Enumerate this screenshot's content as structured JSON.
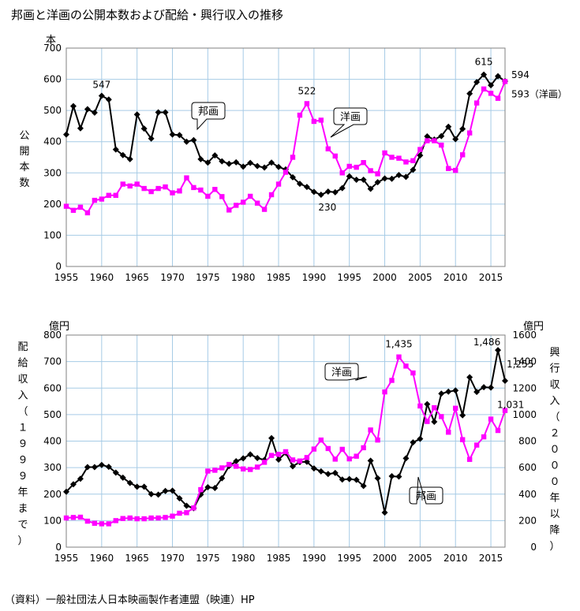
{
  "title": "邦画と洋画の公開本数および配給・興行収入の推移",
  "source": "（資料）一般社団法人日本映画製作者連盟（映連）HP",
  "colors": {
    "domestic": "#000000",
    "foreign": "#ff00ff",
    "grid": "#a6cbe6",
    "axis": "#808080"
  },
  "chart_data": [
    {
      "type": "line",
      "unit_label": "本",
      "ylabel": "公開本数",
      "ylim": [
        0,
        700
      ],
      "yticks": [
        0,
        100,
        200,
        300,
        400,
        500,
        600,
        700
      ],
      "xlim": [
        1955,
        2017
      ],
      "xticks": [
        1955,
        1960,
        1965,
        1970,
        1975,
        1980,
        1985,
        1990,
        1995,
        2000,
        2005,
        2010,
        2015
      ],
      "grid": true,
      "series": [
        {
          "name": "邦画",
          "marker": "diamond",
          "x": [
            1955,
            1956,
            1957,
            1958,
            1959,
            1960,
            1961,
            1962,
            1963,
            1964,
            1965,
            1966,
            1967,
            1968,
            1969,
            1970,
            1971,
            1972,
            1973,
            1974,
            1975,
            1976,
            1977,
            1978,
            1979,
            1980,
            1981,
            1982,
            1983,
            1984,
            1985,
            1986,
            1987,
            1988,
            1989,
            1990,
            1991,
            1992,
            1993,
            1994,
            1995,
            1996,
            1997,
            1998,
            1999,
            2000,
            2001,
            2002,
            2003,
            2004,
            2005,
            2006,
            2007,
            2008,
            2009,
            2010,
            2011,
            2012,
            2013,
            2014,
            2015,
            2016,
            2017
          ],
          "values": [
            423,
            514,
            443,
            504,
            493,
            547,
            535,
            375,
            357,
            344,
            487,
            442,
            410,
            494,
            494,
            423,
            421,
            400,
            405,
            344,
            333,
            356,
            337,
            329,
            334,
            320,
            332,
            322,
            317,
            333,
            319,
            311,
            286,
            265,
            255,
            239,
            230,
            240,
            238,
            251,
            289,
            278,
            278,
            249,
            270,
            282,
            281,
            293,
            287,
            310,
            356,
            417,
            407,
            418,
            448,
            408,
            441,
            554,
            591,
            615,
            581,
            610,
            594
          ]
        },
        {
          "name": "洋画",
          "marker": "square",
          "x": [
            1955,
            1956,
            1957,
            1958,
            1959,
            1960,
            1961,
            1962,
            1963,
            1964,
            1965,
            1966,
            1967,
            1968,
            1969,
            1970,
            1971,
            1972,
            1973,
            1974,
            1975,
            1976,
            1977,
            1978,
            1979,
            1980,
            1981,
            1982,
            1983,
            1984,
            1985,
            1986,
            1987,
            1988,
            1989,
            1990,
            1991,
            1992,
            1993,
            1994,
            1995,
            1996,
            1997,
            1998,
            1999,
            2000,
            2001,
            2002,
            2003,
            2004,
            2005,
            2006,
            2007,
            2008,
            2009,
            2010,
            2011,
            2012,
            2013,
            2014,
            2015,
            2016,
            2017
          ],
          "values": [
            193,
            180,
            190,
            172,
            212,
            216,
            228,
            228,
            264,
            258,
            264,
            250,
            240,
            250,
            255,
            236,
            242,
            284,
            253,
            245,
            225,
            247,
            224,
            181,
            196,
            206,
            225,
            203,
            183,
            230,
            264,
            302,
            350,
            485,
            522,
            465,
            469,
            377,
            354,
            300,
            321,
            318,
            333,
            307,
            297,
            364,
            350,
            347,
            335,
            339,
            375,
            403,
            403,
            389,
            314,
            308,
            358,
            428,
            524,
            569,
            555,
            539,
            593
          ]
        }
      ],
      "annotations": [
        {
          "series": "邦画",
          "x": 1960,
          "text": "547"
        },
        {
          "series": "邦画",
          "x": 1991,
          "text": "230"
        },
        {
          "series": "邦画",
          "x": 2014,
          "text": "615"
        },
        {
          "series": "邦画",
          "x": 2017,
          "text": "594"
        },
        {
          "series": "洋画",
          "x": 1989,
          "text": "522"
        },
        {
          "series": "洋画",
          "x": 2017,
          "text": "593（洋画）"
        }
      ],
      "callouts": [
        {
          "text": "邦画"
        },
        {
          "text": "洋画"
        }
      ]
    },
    {
      "type": "line",
      "unit_label_left": "億円",
      "unit_label_right": "億円",
      "ylabel_left": "配給収入（１９９９年まで）",
      "ylabel_right": "興行収入（２０００年以降）",
      "ylim_left": [
        0,
        800
      ],
      "yticks_left": [
        0,
        100,
        200,
        300,
        400,
        500,
        600,
        700,
        800
      ],
      "ylim_right": [
        0,
        1600
      ],
      "yticks_right": [
        0,
        200,
        400,
        600,
        800,
        1000,
        1200,
        1400,
        1600
      ],
      "xlim": [
        1955,
        2017
      ],
      "xticks": [
        1955,
        1960,
        1965,
        1970,
        1975,
        1980,
        1985,
        1990,
        1995,
        2000,
        2005,
        2010,
        2015
      ],
      "grid": true,
      "series": [
        {
          "name": "邦画",
          "marker": "diamond",
          "x": [
            1955,
            1956,
            1957,
            1958,
            1959,
            1960,
            1961,
            1962,
            1963,
            1964,
            1965,
            1966,
            1967,
            1968,
            1969,
            1970,
            1971,
            1972,
            1973,
            1974,
            1975,
            1976,
            1977,
            1978,
            1979,
            1980,
            1981,
            1982,
            1983,
            1984,
            1985,
            1986,
            1987,
            1988,
            1989,
            1990,
            1991,
            1992,
            1993,
            1994,
            1995,
            1996,
            1997,
            1998,
            1999,
            2000,
            2001,
            2002,
            2003,
            2004,
            2005,
            2006,
            2007,
            2008,
            2009,
            2010,
            2011,
            2012,
            2013,
            2014,
            2015,
            2016,
            2017
          ],
          "values": [
            209,
            237,
            258,
            302,
            302,
            310,
            303,
            281,
            262,
            242,
            228,
            228,
            200,
            198,
            212,
            213,
            184,
            156,
            147,
            198,
            226,
            223,
            260,
            306,
            324,
            335,
            350,
            336,
            329,
            411,
            330,
            356,
            305,
            321,
            322,
            297,
            286,
            276,
            280,
            255,
            257,
            254,
            231,
            326,
            260,
            261,
            535,
            532,
            670,
            790,
            817,
            1079,
            946,
            1158,
            1173,
            1182,
            995,
            1282,
            1171,
            1207,
            1204,
            1486,
            1255
          ]
        },
        {
          "name": "洋画",
          "marker": "square",
          "x": [
            1955,
            1956,
            1957,
            1958,
            1959,
            1960,
            1961,
            1962,
            1963,
            1964,
            1965,
            1966,
            1967,
            1968,
            1969,
            1970,
            1971,
            1972,
            1973,
            1974,
            1975,
            1976,
            1977,
            1978,
            1979,
            1980,
            1981,
            1982,
            1983,
            1984,
            1985,
            1986,
            1987,
            1988,
            1989,
            1990,
            1991,
            1992,
            1993,
            1994,
            1995,
            1996,
            1997,
            1998,
            1999,
            2000,
            2001,
            2002,
            2003,
            2004,
            2005,
            2006,
            2007,
            2008,
            2009,
            2010,
            2011,
            2012,
            2013,
            2014,
            2015,
            2016,
            2017
          ],
          "values": [
            110,
            112,
            113,
            98,
            90,
            88,
            88,
            100,
            108,
            110,
            107,
            107,
            110,
            110,
            112,
            117,
            128,
            130,
            148,
            217,
            287,
            290,
            299,
            312,
            305,
            295,
            293,
            302,
            320,
            346,
            350,
            360,
            329,
            325,
            338,
            370,
            404,
            372,
            332,
            369,
            333,
            343,
            375,
            442,
            404,
            1171,
            1258,
            1435,
            1366,
            1314,
            1065,
            948,
            1052,
            985,
            867,
            1048,
            811,
            662,
            770,
            832,
            966,
            880,
            1031
          ]
        }
      ],
      "annotations": [
        {
          "series": "洋画",
          "x": 2002,
          "text": "1,435"
        },
        {
          "series": "邦画",
          "x": 2016,
          "text": "1,486"
        },
        {
          "series": "邦画",
          "x": 2017,
          "text": "1,255"
        },
        {
          "series": "洋画",
          "x": 2017,
          "text": "1,031"
        }
      ],
      "callouts": [
        {
          "text": "洋画"
        },
        {
          "text": "邦画"
        }
      ]
    }
  ]
}
